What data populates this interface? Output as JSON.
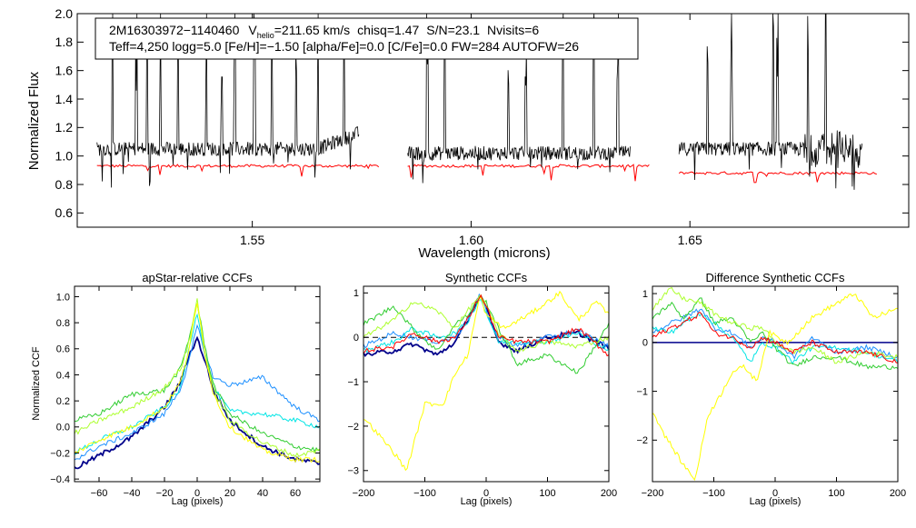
{
  "chart_data": [
    {
      "type": "line",
      "panel": "spectrum",
      "title": "",
      "xlabel": "Wavelength (microns)",
      "ylabel": "Normalized Flux",
      "xlim": [
        1.51,
        1.7
      ],
      "ylim": [
        0.5,
        2.0
      ],
      "xticks": [
        1.55,
        1.6,
        1.65
      ],
      "xtick_labels": [
        "1.55",
        "1.60",
        "1.65"
      ],
      "yticks": [
        0.6,
        0.8,
        1.0,
        1.2,
        1.4,
        1.6,
        1.8,
        2.0
      ],
      "ytick_labels": [
        "0.6",
        "0.8",
        "1.0",
        "1.2",
        "1.4",
        "1.6",
        "1.8",
        "2.0"
      ],
      "annotation": {
        "star_id": "2M16303972−1140460",
        "vhelio_prefix": "V",
        "vhelio_sub": "helio",
        "vhelio_value": "=211.65 km/s",
        "chisq": "chisq=1.47",
        "snr": "S/N=23.1",
        "nvisits": "Nvisits=6",
        "line2": "Teff=4,250 logg=5.0 [Fe/H]=−1.50 [alpha/Fe]=0.0 [C/Fe]=0.0 FW=284 AUTOFW=26"
      },
      "series": [
        {
          "name": "observed",
          "color": "#000000",
          "chips": [
            [
              1.5145,
              1.5745
            ],
            [
              1.5855,
              1.6365
            ],
            [
              1.6475,
              1.6895
            ]
          ],
          "level": [
            1.05,
            1.02,
            1.05
          ],
          "noise": 0.05,
          "spikes": [
            1.518,
            1.5235,
            1.526,
            1.529,
            1.533,
            1.5395,
            1.543,
            1.546,
            1.5505,
            1.5545,
            1.56,
            1.565,
            1.571,
            1.59,
            1.594,
            1.6085,
            1.6125,
            1.621,
            1.628,
            1.6335,
            1.654,
            1.6595,
            1.669,
            1.67,
            1.677,
            1.681
          ]
        },
        {
          "name": "synthetic model",
          "color": "#ff0000",
          "chips": [
            [
              1.5145,
              1.579
            ],
            [
              1.5855,
              1.641
            ],
            [
              1.6475,
              1.693
            ]
          ],
          "level": [
            0.93,
            0.93,
            0.88
          ]
        }
      ]
    },
    {
      "type": "line",
      "panel": "apstar-ccf",
      "title": "apStar-relative CCFs",
      "xlabel": "Lag (pixels)",
      "ylabel": "Normalized CCF",
      "xlim": [
        -75,
        75
      ],
      "ylim": [
        -0.42,
        1.08
      ],
      "xticks": [
        -60,
        -40,
        -20,
        0,
        20,
        40,
        60
      ],
      "xtick_labels": [
        "−60",
        "−40",
        "−20",
        "0",
        "20",
        "40",
        "60"
      ],
      "yticks": [
        -0.4,
        -0.2,
        0.0,
        0.2,
        0.4,
        0.6,
        0.8,
        1.0
      ],
      "ytick_labels": [
        "−0.4",
        "−0.2",
        "0.0",
        "0.2",
        "0.4",
        "0.6",
        "0.8",
        "1.0"
      ],
      "series": [
        {
          "name": "visit1",
          "color": "#00008b",
          "x": [
            -75,
            -60,
            -40,
            -20,
            -10,
            -5,
            0,
            5,
            10,
            20,
            40,
            60,
            75
          ],
          "y": [
            -0.32,
            -0.22,
            -0.08,
            0.15,
            0.35,
            0.55,
            0.68,
            0.5,
            0.28,
            0.05,
            -0.15,
            -0.25,
            -0.28
          ]
        },
        {
          "name": "visit2",
          "color": "#1e90ff",
          "x": [
            -75,
            -60,
            -40,
            -20,
            -10,
            -5,
            0,
            5,
            10,
            20,
            40,
            60,
            75
          ],
          "y": [
            -0.25,
            -0.15,
            -0.05,
            0.1,
            0.3,
            0.5,
            0.78,
            0.55,
            0.38,
            0.32,
            0.38,
            0.15,
            0.05
          ]
        },
        {
          "name": "visit3",
          "color": "#00e5e5",
          "x": [
            -75,
            -60,
            -40,
            -20,
            -10,
            -5,
            0,
            5,
            10,
            20,
            40,
            60,
            75
          ],
          "y": [
            -0.2,
            -0.1,
            0.0,
            0.15,
            0.3,
            0.6,
            0.88,
            0.55,
            0.3,
            0.12,
            0.1,
            0.05,
            0.0
          ]
        },
        {
          "name": "visit4",
          "color": "#32cd32",
          "x": [
            -75,
            -60,
            -40,
            -20,
            -10,
            -5,
            0,
            5,
            10,
            20,
            40,
            60,
            75
          ],
          "y": [
            0.05,
            0.1,
            0.25,
            0.28,
            0.45,
            0.68,
            0.95,
            0.6,
            0.32,
            0.1,
            -0.05,
            -0.15,
            -0.18
          ]
        },
        {
          "name": "visit5",
          "color": "#adff2f",
          "x": [
            -75,
            -60,
            -40,
            -20,
            -10,
            -5,
            0,
            5,
            10,
            20,
            40,
            60,
            75
          ],
          "y": [
            -0.05,
            0.05,
            0.15,
            0.3,
            0.45,
            0.65,
            0.98,
            0.55,
            0.28,
            0.05,
            -0.12,
            -0.22,
            -0.18
          ]
        },
        {
          "name": "visit6",
          "color": "#ffff00",
          "x": [
            -75,
            -60,
            -40,
            -20,
            -10,
            -5,
            0,
            5,
            10,
            20,
            40,
            60,
            75
          ],
          "y": [
            -0.2,
            -0.1,
            0.0,
            0.15,
            0.35,
            0.6,
            0.95,
            0.55,
            0.25,
            0.0,
            -0.18,
            -0.25,
            -0.25
          ]
        }
      ]
    },
    {
      "type": "line",
      "panel": "synthetic-ccf",
      "title": "Synthetic CCFs",
      "xlabel": "Lag (pixels)",
      "ylabel": "",
      "xlim": [
        -200,
        200
      ],
      "ylim": [
        -3.25,
        1.15
      ],
      "xticks": [
        -200,
        -100,
        0,
        100,
        200
      ],
      "xtick_labels": [
        "−200",
        "−100",
        "0",
        "100",
        "200"
      ],
      "yticks": [
        -3,
        -2,
        -1,
        0,
        1
      ],
      "ytick_labels": [
        "−3",
        "−2",
        "−1",
        "0",
        "1"
      ],
      "reference_line": {
        "y": 0,
        "style": "dashed"
      },
      "series": [
        {
          "name": "visit1",
          "color": "#00008b",
          "x": [
            -200,
            -150,
            -120,
            -80,
            -50,
            -30,
            -10,
            0,
            20,
            50,
            100,
            150,
            200
          ],
          "y": [
            -0.4,
            -0.3,
            -0.15,
            -0.4,
            -0.1,
            0.4,
            0.95,
            0.65,
            -0.1,
            -0.3,
            0.0,
            0.1,
            -0.25
          ]
        },
        {
          "name": "visit2",
          "color": "#1e90ff",
          "x": [
            -200,
            -150,
            -120,
            -80,
            -50,
            -30,
            -10,
            0,
            20,
            50,
            100,
            150,
            200
          ],
          "y": [
            -0.2,
            0.1,
            0.0,
            -0.1,
            0.0,
            0.4,
            0.95,
            0.6,
            0.0,
            -0.2,
            0.0,
            0.15,
            -0.2
          ]
        },
        {
          "name": "visit3",
          "color": "#00e5e5",
          "x": [
            -200,
            -150,
            -120,
            -80,
            -50,
            -30,
            -10,
            0,
            20,
            50,
            100,
            150,
            200
          ],
          "y": [
            -0.3,
            -0.1,
            0.2,
            0.0,
            0.1,
            0.35,
            0.9,
            0.55,
            -0.1,
            -0.1,
            -0.1,
            0.1,
            -0.3
          ]
        },
        {
          "name": "visit4",
          "color": "#32cd32",
          "x": [
            -200,
            -150,
            -120,
            -80,
            -50,
            -30,
            -10,
            0,
            20,
            50,
            100,
            150,
            200
          ],
          "y": [
            0.3,
            0.7,
            0.2,
            -0.3,
            0.3,
            0.5,
            0.9,
            0.8,
            0.2,
            -0.6,
            -0.4,
            -0.8,
            0.3
          ]
        },
        {
          "name": "visit5",
          "color": "#adff2f",
          "x": [
            -200,
            -150,
            -120,
            -80,
            -50,
            -30,
            -10,
            0,
            20,
            50,
            100,
            150,
            200
          ],
          "y": [
            0.0,
            0.4,
            0.8,
            0.6,
            0.2,
            0.6,
            0.95,
            0.7,
            0.1,
            -0.3,
            -0.1,
            -0.2,
            0.0
          ]
        },
        {
          "name": "visit6",
          "color": "#ffff00",
          "x": [
            -200,
            -150,
            -130,
            -100,
            -70,
            -50,
            -30,
            -10,
            0,
            30,
            80,
            120,
            150,
            180,
            200
          ],
          "y": [
            -1.8,
            -2.6,
            -3.0,
            -1.5,
            -1.5,
            -0.8,
            -0.4,
            0.95,
            0.5,
            0.2,
            0.6,
            1.0,
            0.4,
            0.8,
            0.5
          ]
        },
        {
          "name": "visit7",
          "color": "#ff0000",
          "x": [
            -200,
            -150,
            -120,
            -80,
            -50,
            -30,
            -10,
            0,
            20,
            50,
            100,
            150,
            200
          ],
          "y": [
            -0.3,
            -0.2,
            0.1,
            -0.1,
            0.0,
            0.4,
            0.95,
            0.7,
            0.0,
            -0.1,
            -0.1,
            0.2,
            -0.4
          ]
        }
      ]
    },
    {
      "type": "line",
      "panel": "difference-ccf",
      "title": "Difference Synthetic CCFs",
      "xlabel": "Lag (pixels)",
      "ylabel": "",
      "xlim": [
        -200,
        200
      ],
      "ylim": [
        -2.85,
        1.15
      ],
      "xticks": [
        -200,
        -100,
        0,
        100,
        200
      ],
      "xtick_labels": [
        "−200",
        "−100",
        "0",
        "100",
        "200"
      ],
      "yticks": [
        -2,
        -1,
        0,
        1
      ],
      "ytick_labels": [
        "−2",
        "−1",
        "0",
        "1"
      ],
      "reference_line": {
        "y": 0,
        "style": "solid",
        "color": "#00008b"
      },
      "series": [
        {
          "name": "visit2",
          "color": "#1e90ff",
          "x": [
            -200,
            -170,
            -150,
            -120,
            -100,
            -70,
            -40,
            -20,
            0,
            30,
            60,
            100,
            150,
            200
          ],
          "y": [
            0.2,
            0.4,
            0.5,
            0.7,
            0.3,
            0.2,
            -0.1,
            0.1,
            0.0,
            -0.3,
            0.1,
            -0.2,
            -0.1,
            -0.3
          ]
        },
        {
          "name": "visit3",
          "color": "#00e5e5",
          "x": [
            -200,
            -170,
            -150,
            -120,
            -100,
            -70,
            -40,
            -20,
            0,
            30,
            60,
            100,
            150,
            200
          ],
          "y": [
            0.3,
            0.2,
            0.4,
            0.6,
            0.4,
            0.1,
            -0.4,
            0.0,
            -0.1,
            -0.4,
            -0.1,
            -0.1,
            -0.2,
            -0.4
          ]
        },
        {
          "name": "visit4",
          "color": "#32cd32",
          "x": [
            -200,
            -170,
            -150,
            -120,
            -100,
            -70,
            -40,
            -20,
            0,
            30,
            60,
            100,
            150,
            200
          ],
          "y": [
            0.5,
            0.8,
            0.5,
            0.9,
            0.4,
            0.5,
            0.0,
            0.2,
            -0.1,
            -0.5,
            -0.3,
            -0.3,
            -0.5,
            -0.5
          ]
        },
        {
          "name": "visit5",
          "color": "#adff2f",
          "x": [
            -200,
            -170,
            -150,
            -120,
            -100,
            -70,
            -40,
            -20,
            0,
            30,
            60,
            100,
            150,
            200
          ],
          "y": [
            0.7,
            1.1,
            0.9,
            0.8,
            0.6,
            0.4,
            0.3,
            0.3,
            0.0,
            -0.2,
            -0.1,
            -0.4,
            -0.2,
            -0.3
          ]
        },
        {
          "name": "visit6",
          "color": "#ffff00",
          "x": [
            -200,
            -180,
            -150,
            -130,
            -110,
            -90,
            -70,
            -50,
            -30,
            -10,
            20,
            60,
            100,
            130,
            160,
            200
          ],
          "y": [
            -1.4,
            -1.9,
            -2.5,
            -2.8,
            -1.5,
            -1.1,
            -0.6,
            -0.5,
            -0.8,
            0.2,
            0.0,
            0.5,
            0.8,
            1.0,
            0.5,
            0.7
          ]
        },
        {
          "name": "visit7",
          "color": "#ff0000",
          "x": [
            -200,
            -170,
            -150,
            -120,
            -100,
            -70,
            -40,
            -20,
            0,
            30,
            60,
            100,
            150,
            200
          ],
          "y": [
            0.1,
            0.3,
            0.4,
            0.6,
            0.2,
            0.1,
            -0.1,
            0.1,
            0.0,
            -0.2,
            0.0,
            -0.2,
            -0.2,
            -0.4
          ]
        }
      ]
    }
  ]
}
